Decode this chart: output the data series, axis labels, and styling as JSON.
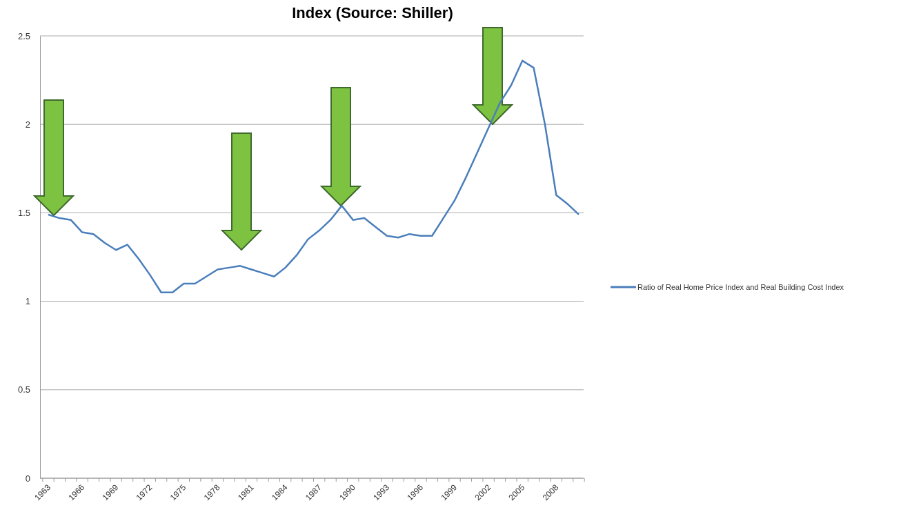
{
  "chart_data": {
    "type": "line",
    "title": "Index (Source: Shiller)",
    "categories": [
      "1963",
      null,
      null,
      "1966",
      null,
      null,
      "1969",
      null,
      null,
      "1972",
      null,
      null,
      "1975",
      null,
      null,
      "1978",
      null,
      null,
      "1981",
      null,
      null,
      "1984",
      null,
      null,
      "1987",
      null,
      null,
      "1990",
      null,
      null,
      "1993",
      null,
      null,
      "1996",
      null,
      null,
      "1999",
      null,
      null,
      "2002",
      null,
      null,
      "2005",
      null,
      null,
      "2008",
      null,
      null
    ],
    "series": [
      {
        "name": "Ratio of Real Home Price Index and Real Building Cost Index",
        "color": "#4a7ebb",
        "values": [
          1.49,
          1.47,
          1.46,
          1.39,
          1.38,
          1.33,
          1.29,
          1.32,
          1.24,
          1.15,
          1.05,
          1.05,
          1.1,
          1.1,
          1.14,
          1.18,
          1.19,
          1.2,
          1.18,
          1.16,
          1.14,
          1.19,
          1.26,
          1.35,
          1.4,
          1.46,
          1.54,
          1.46,
          1.47,
          1.42,
          1.37,
          1.36,
          1.38,
          1.37,
          1.37,
          1.47,
          1.57,
          1.7,
          1.84,
          1.98,
          2.12,
          2.22,
          2.36,
          2.32,
          2.0,
          1.6,
          1.55,
          1.49
        ]
      }
    ],
    "ylim": [
      0,
      2.5
    ],
    "yticks": [
      0,
      0.5,
      1,
      1.5,
      2,
      2.5
    ],
    "grid": "y",
    "legend": "right",
    "marker": "none",
    "line_style": "solid"
  }
}
